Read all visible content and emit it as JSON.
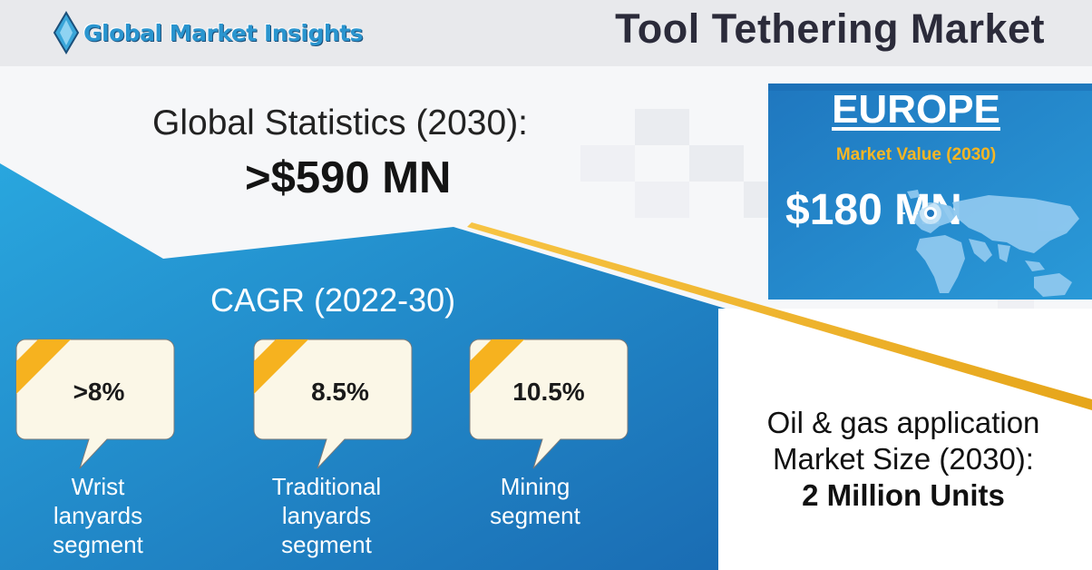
{
  "brand": {
    "name": "Global Market Insights"
  },
  "title": "Tool Tethering Market",
  "global_stats": {
    "label": "Global Statistics (2030):",
    "value": ">$590 MN"
  },
  "cagr": {
    "label": "CAGR (2022-30)",
    "items": [
      {
        "value": ">8%",
        "label": "Wrist lanyards segment"
      },
      {
        "value": "8.5%",
        "label": "Traditional lanyards segment"
      },
      {
        "value": "10.5%",
        "label": "Mining segment"
      }
    ]
  },
  "europe": {
    "title": "EUROPE",
    "subtitle": "Market Value (2030)",
    "value": "$180 MN",
    "map_icon": "world-map-icon"
  },
  "oil_gas": {
    "label": "Oil & gas application Market Size (2030):",
    "value": "2 Million Units"
  },
  "colors": {
    "blue_dark": "#1d6fb4",
    "blue_light": "#2aa3dc",
    "accent_yellow": "#f5b320",
    "bubble_fill": "#faf6e6",
    "title_text": "#2b2b3a"
  }
}
